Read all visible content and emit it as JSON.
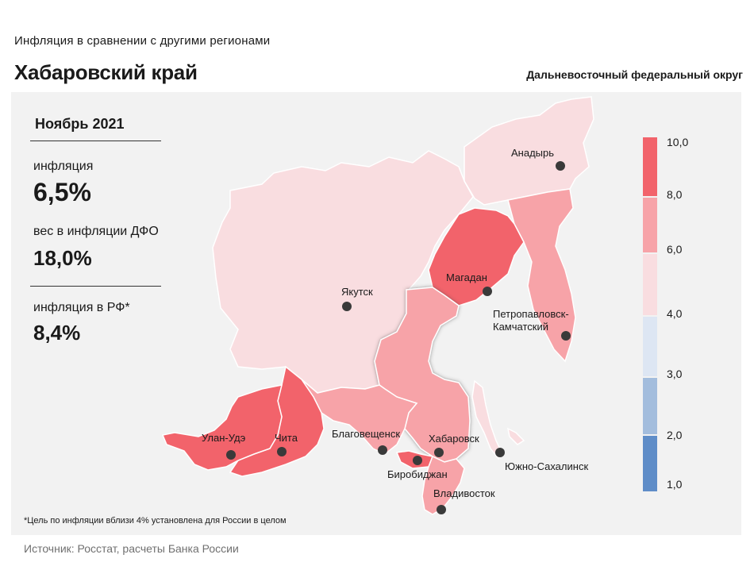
{
  "header": {
    "subtitle": "Инфляция  в сравнении  с другими  регионами",
    "title": "Хабаровский край",
    "district": "Дальневосточный федеральный округ"
  },
  "stats": {
    "month": "Ноябрь 2021",
    "inflation_label": "инфляция",
    "inflation_value": "6,5%",
    "weight_label": "вес в инфляции  ДФО",
    "weight_value": "18,0%",
    "rf_label": "инфляция  в РФ*",
    "rf_value": "8,4%"
  },
  "cities": {
    "anadyr": "Анадырь",
    "yakutsk": "Якутск",
    "magadan": "Магадан",
    "petropavlovsk_1": "Петропавловск-",
    "petropavlovsk_2": "Камчатский",
    "ulan_ude": "Улан-Удэ",
    "chita": "Чита",
    "blagoveshchensk": "Благовещенск",
    "khabarovsk": "Хабаровск",
    "yuzhno": "Южно-Сахалинск",
    "birobidzhan": "Биробиджан",
    "vladivostok": "Владивосток"
  },
  "legend": {
    "labels": [
      "10,0",
      "8,0",
      "6,0",
      "4,0",
      "3,0",
      "2,0",
      "1,0"
    ],
    "colors": {
      "8_10": "#f2636b",
      "6_8": "#f7a3a8",
      "4_6": "#f9dde0",
      "3_4": "#dde6f3",
      "2_3": "#a3bddd",
      "1_2": "#5f8dc8"
    }
  },
  "footnote": "*Цель по инфляции вблизи 4% установлена для России в целом",
  "source": "Источник: Росстат, расчеты Банка России"
}
